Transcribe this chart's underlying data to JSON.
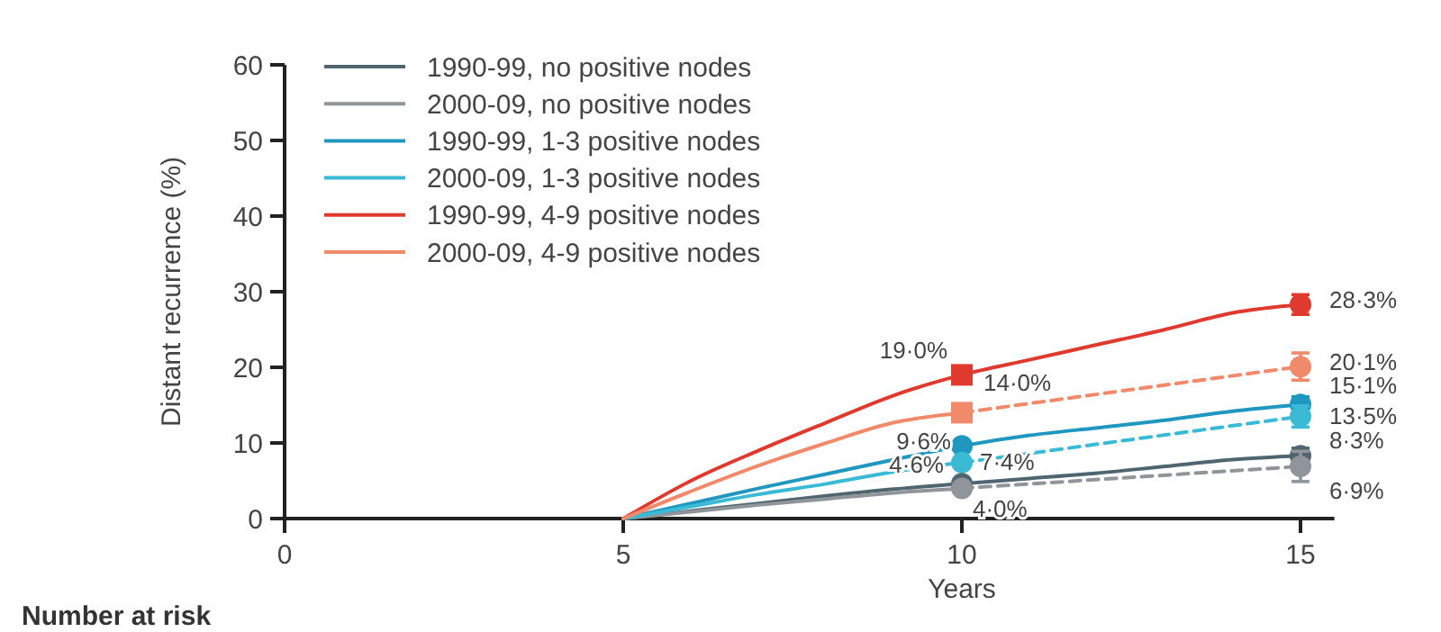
{
  "chart_data": {
    "type": "line",
    "xlabel": "Years",
    "ylabel": "Distant recurrence (%)",
    "xlim": [
      0,
      15.5
    ],
    "xticks": [
      0,
      5,
      10,
      15
    ],
    "ylim": [
      0,
      60
    ],
    "yticks": [
      0,
      10,
      20,
      30,
      40,
      50,
      60
    ],
    "grid": false,
    "legend": "top left",
    "marker": "none",
    "annotations": [
      "Number at risk"
    ],
    "series": [
      {
        "name": "1990-99, no positive nodes",
        "color": "#4f6670",
        "x": [
          5,
          6,
          7,
          8,
          9,
          10,
          11,
          12,
          13,
          14,
          15
        ],
        "values": [
          0,
          1,
          2,
          3,
          3.9,
          4.6,
          5.3,
          6,
          6.9,
          7.8,
          8.3
        ]
      },
      {
        "name": "2000-09, no positive nodes",
        "color": "#8f9599",
        "x": [
          5,
          6,
          7,
          8,
          9,
          10
        ],
        "values": [
          0,
          0.9,
          1.8,
          2.6,
          3.4,
          4.0
        ]
      },
      {
        "name": "1990-99, 1-3 positive nodes",
        "color": "#1f97bf",
        "x": [
          5,
          6,
          7,
          8,
          9,
          10,
          11,
          12,
          13,
          14,
          15
        ],
        "values": [
          0,
          2,
          4,
          5.9,
          7.8,
          9.6,
          11,
          12,
          13,
          14.2,
          15.1
        ]
      },
      {
        "name": "2000-09, 1-3 positive nodes",
        "color": "#3bbad6",
        "x": [
          5,
          6,
          7,
          8,
          9,
          10
        ],
        "values": [
          0,
          1.6,
          3.2,
          4.6,
          6.2,
          7.4
        ]
      },
      {
        "name": "1990-99, 4-9 positive nodes",
        "color": "#e03a2e",
        "x": [
          5,
          6,
          7,
          8,
          9,
          10,
          11,
          12,
          13,
          14,
          15
        ],
        "values": [
          0,
          5,
          9,
          12.7,
          16.3,
          19.0,
          21,
          23,
          25,
          27.2,
          28.3
        ]
      },
      {
        "name": "2000-09, 4-9 positive nodes",
        "color": "#f08a6a",
        "x": [
          5,
          6,
          7,
          8,
          9,
          10
        ],
        "values": [
          0,
          3.6,
          7,
          10,
          12.7,
          14.0
        ]
      },
      {
        "color": "#8f9599",
        "line_style": "dashed",
        "x": [
          10,
          15
        ],
        "values": [
          4.0,
          6.9
        ]
      },
      {
        "color": "#3bbad6",
        "line_style": "dashed",
        "x": [
          10,
          15
        ],
        "values": [
          7.4,
          13.5
        ]
      },
      {
        "color": "#f08a6a",
        "line_style": "dashed",
        "x": [
          10,
          15
        ],
        "values": [
          14.0,
          20.1
        ]
      },
      {
        "type": "scatter",
        "marker": "square",
        "x": [
          10,
          10
        ],
        "values": [
          19.0,
          14.0
        ],
        "colors": [
          "#e03a2e",
          "#f08a6a"
        ],
        "value_labels": [
          "19·0%",
          "14·0%"
        ]
      },
      {
        "type": "scatter",
        "marker": "circle",
        "x": [
          10,
          10,
          10,
          10
        ],
        "values": [
          9.6,
          7.4,
          4.6,
          4.0
        ],
        "colors": [
          "#1f97bf",
          "#3bbad6",
          "#4f6670",
          "#8f9599"
        ],
        "value_labels": [
          "9·6%",
          "7·4%",
          "4·6%",
          "4·0%"
        ]
      },
      {
        "type": "scatter",
        "marker": "circle",
        "x": [
          15,
          15,
          15,
          15,
          15,
          15
        ],
        "values": [
          28.3,
          20.1,
          15.1,
          13.5,
          8.3,
          6.9
        ],
        "colors": [
          "#e03a2e",
          "#f08a6a",
          "#1f97bf",
          "#3bbad6",
          "#4f6670",
          "#8f9599"
        ],
        "errors": [
          1.3,
          1.8,
          1.0,
          1.4,
          1.0,
          2.0
        ],
        "value_labels": [
          "28·3%",
          "20·1%",
          "15·1%",
          "13·5%",
          "8·3%",
          "6·9%"
        ]
      }
    ]
  }
}
